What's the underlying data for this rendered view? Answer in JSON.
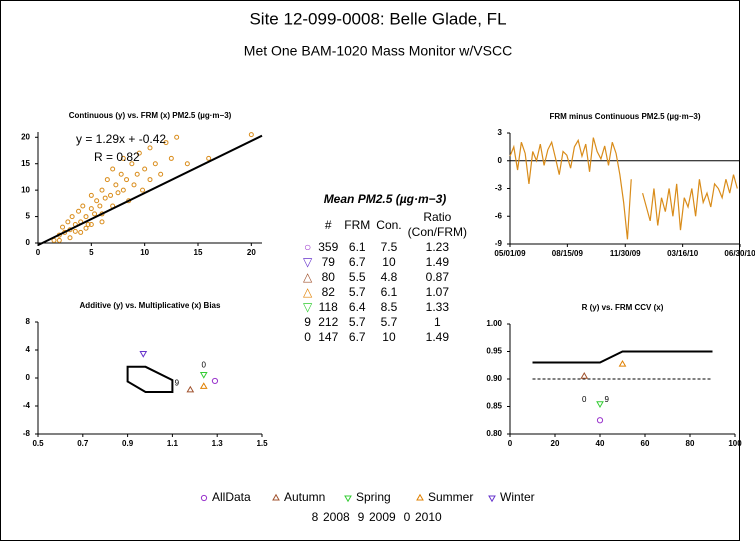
{
  "header": {
    "title": "Site 12-099-0008: Belle Glade, FL",
    "subtitle": "Met One BAM-1020 Mass Monitor w/VSCC"
  },
  "chart_data": [
    {
      "type": "scatter",
      "title": "Continuous (y) vs. FRM (x) PM2.5 (µg·m−3)",
      "color": "#d98c1a",
      "x": [
        1.5,
        2,
        2.3,
        2.5,
        2.8,
        3,
        3.2,
        3.5,
        3.8,
        4,
        4.2,
        4.5,
        4.7,
        5,
        5,
        5.3,
        5.5,
        5.8,
        6,
        6,
        6.3,
        6.5,
        6.8,
        7,
        7,
        7.3,
        7.5,
        7.8,
        8,
        8,
        8.3,
        8.5,
        8.8,
        9,
        9.3,
        9.5,
        9.8,
        10,
        10.5,
        10.5,
        11,
        11.5,
        12,
        12.5,
        13,
        14,
        16,
        20,
        3,
        4,
        5,
        6,
        2,
        3.5,
        4.5
      ],
      "y": [
        0.5,
        1.5,
        3,
        2,
        4,
        2.5,
        5,
        3.5,
        6,
        4,
        7,
        5,
        3.5,
        6.5,
        9,
        5.5,
        8,
        7,
        10,
        5.5,
        8.5,
        12,
        9,
        7,
        14,
        11,
        9.5,
        13,
        10,
        16,
        12,
        8,
        15,
        11,
        13,
        17,
        10,
        14,
        12,
        18,
        15,
        13,
        19,
        16,
        20,
        15,
        16,
        20.5,
        1,
        2,
        3.5,
        4,
        0.5,
        2.2,
        2.8
      ],
      "fit": {
        "x": [
          0,
          21
        ],
        "y": [
          -0.4,
          20.3
        ]
      },
      "annotations": [
        "y = 1.29x + -0.42",
        "R = 0.82"
      ],
      "xlim": [
        0,
        21
      ],
      "xticks": [
        0,
        5,
        10,
        15,
        20
      ],
      "ylim": [
        0,
        21
      ],
      "yticks": [
        0,
        5,
        10,
        15,
        20
      ]
    },
    {
      "type": "line",
      "title": "FRM minus Continuous PM2.5 (µg·m−3)",
      "color": "#d98c1a",
      "x": [
        "2009-05-01",
        "2009-05-08",
        "2009-05-15",
        "2009-05-22",
        "2009-05-29",
        "2009-06-05",
        "2009-06-12",
        "2009-06-19",
        "2009-06-26",
        "2009-07-03",
        "2009-07-10",
        "2009-07-17",
        "2009-07-24",
        "2009-07-31",
        "2009-08-07",
        "2009-08-14",
        "2009-08-21",
        "2009-08-28",
        "2009-09-04",
        "2009-09-11",
        "2009-09-18",
        "2009-09-25",
        "2009-10-02",
        "2009-10-09",
        "2009-10-16",
        "2009-10-23",
        "2009-10-30",
        "2009-11-06",
        "2009-11-13",
        "2009-11-20",
        "2009-11-27",
        "2009-12-04",
        "2009-12-11",
        "2009-12-18",
        "2009-12-25",
        "2010-01-01",
        "2010-01-08",
        "2010-01-15",
        "2010-01-22",
        "2010-01-29",
        "2010-02-05",
        "2010-02-12",
        "2010-02-19",
        "2010-02-26",
        "2010-03-05",
        "2010-03-12",
        "2010-03-19",
        "2010-03-26",
        "2010-04-02",
        "2010-04-09",
        "2010-04-16",
        "2010-04-23",
        "2010-04-30",
        "2010-05-07",
        "2010-05-14",
        "2010-05-21",
        "2010-05-28",
        "2010-06-04",
        "2010-06-11",
        "2010-06-18",
        "2010-06-25"
      ],
      "values": [
        0.5,
        1.5,
        -1,
        2,
        0.8,
        -2.5,
        1,
        0,
        1.8,
        -0.5,
        1.2,
        2,
        0.3,
        -1.5,
        1,
        0.6,
        -0.8,
        1.5,
        2.2,
        0.5,
        1.8,
        -1.2,
        2.5,
        1,
        0.2,
        1.6,
        -0.5,
        2,
        0.8,
        -1.5,
        -4.5,
        -8.5,
        -2,
        null,
        null,
        -3.5,
        -5,
        -6.5,
        -3,
        -7,
        -4,
        -5.5,
        -3,
        -6,
        -2.5,
        -7.5,
        -4,
        -5,
        -3,
        -6,
        -2,
        -4.5,
        -3.5,
        -5,
        -2.5,
        -3,
        -4,
        -2,
        -3.5,
        -1.5,
        -3
      ],
      "hline": 0,
      "xlim": [
        "2009-05-01",
        "2010-06-30"
      ],
      "xticks": [
        {
          "value": "2009-05-01",
          "label": "05/01/09"
        },
        {
          "value": "2009-08-15",
          "label": "08/15/09"
        },
        {
          "value": "2009-11-30",
          "label": "11/30/09"
        },
        {
          "value": "2010-03-16",
          "label": "03/16/10"
        },
        {
          "value": "2010-06-30",
          "label": "06/30/10"
        }
      ],
      "ylim": [
        -9,
        3
      ],
      "yticks": [
        -9,
        -6,
        -3,
        0,
        3
      ]
    },
    {
      "type": "scatter",
      "title": "Additive (y) vs. Multiplicative (x) Bias",
      "series": [
        {
          "name": "AllData",
          "color": "#9933cc",
          "marker": "circle",
          "x": [
            1.29
          ],
          "y": [
            -0.42
          ]
        },
        {
          "name": "Autumn",
          "color": "#a0522d",
          "marker": "triangle",
          "x": [
            1.18
          ],
          "y": [
            -1.7
          ]
        },
        {
          "name": "Spring",
          "color": "#33cc33",
          "marker": "triangle-down",
          "x": [
            1.24
          ],
          "y": [
            0.5
          ]
        },
        {
          "name": "Summer",
          "color": "#e08000",
          "marker": "triangle",
          "x": [
            1.24
          ],
          "y": [
            -1.2
          ]
        },
        {
          "name": "Winter",
          "color": "#6633cc",
          "marker": "triangle-down",
          "x": [
            0.97
          ],
          "y": [
            3.5
          ]
        },
        {
          "name": "2008",
          "color": "#000000",
          "symbol": "8",
          "x": [],
          "y": []
        },
        {
          "name": "2009",
          "color": "#000000",
          "symbol": "9",
          "x": [
            1.12
          ],
          "y": [
            -0.8
          ]
        },
        {
          "name": "2010",
          "color": "#000000",
          "symbol": "0",
          "x": [
            1.24
          ],
          "y": [
            1.8
          ]
        }
      ],
      "region": {
        "x": [
          0.9,
          0.98,
          1.1,
          1.1,
          0.98,
          0.9
        ],
        "y": [
          1.6,
          1.6,
          -0.3,
          -2,
          -2,
          -0.5
        ]
      },
      "xlim": [
        0.5,
        1.5
      ],
      "xticks": [
        0.5,
        0.7,
        0.9,
        1.1,
        1.3,
        1.5
      ],
      "ylim": [
        -8,
        8
      ],
      "yticks": [
        -8,
        -4,
        0,
        4,
        8
      ]
    },
    {
      "type": "scatter",
      "title": "R (y) vs. FRM CCV (x)",
      "series": [
        {
          "color": "#9933cc",
          "marker": "circle",
          "x": [
            40
          ],
          "y": [
            0.825
          ]
        },
        {
          "color": "#a0522d",
          "marker": "triangle",
          "x": [
            33
          ],
          "y": [
            0.905
          ]
        },
        {
          "color": "#33cc33",
          "marker": "triangle-down",
          "x": [
            40
          ],
          "y": [
            0.855
          ]
        },
        {
          "color": "#e08000",
          "marker": "triangle",
          "x": [
            50
          ],
          "y": [
            0.927
          ]
        },
        {
          "color": "#000000",
          "symbol": "9",
          "x": [
            43
          ],
          "y": [
            0.862
          ]
        },
        {
          "color": "#000000",
          "symbol": "0",
          "x": [
            33
          ],
          "y": [
            0.862
          ]
        }
      ],
      "lines": [
        {
          "x": [
            10,
            40,
            50,
            90
          ],
          "y": [
            0.93,
            0.93,
            0.95,
            0.95
          ],
          "dash": false
        },
        {
          "x": [
            10,
            90
          ],
          "y": [
            0.9,
            0.9
          ],
          "dash": true
        }
      ],
      "xlim": [
        0,
        100
      ],
      "xticks": [
        0,
        20,
        40,
        60,
        80,
        100
      ],
      "ylim": [
        0.8,
        1.0
      ],
      "yticks": [
        {
          "value": 0.8,
          "label": "0.80"
        },
        {
          "value": 0.85,
          "label": "0.85"
        },
        {
          "value": 0.9,
          "label": "0.90"
        },
        {
          "value": 0.95,
          "label": "0.95"
        },
        {
          "value": 1.0,
          "label": "1.00"
        }
      ]
    }
  ],
  "table": {
    "title": "Mean PM2.5 (µg·m−3)",
    "columns": [
      "#",
      "FRM",
      "Con.",
      "Ratio (Con/FRM)"
    ],
    "rows": [
      [
        "○",
        359,
        6.1,
        7.5,
        1.23
      ],
      [
        "▽",
        79,
        6.7,
        10,
        1.49
      ],
      [
        "△",
        80,
        5.5,
        4.8,
        0.87
      ],
      [
        "△",
        82,
        5.7,
        6.1,
        1.07
      ],
      [
        "▽",
        118,
        6.4,
        8.5,
        1.33
      ],
      [
        "9",
        212,
        5.7,
        5.7,
        1
      ],
      [
        "0",
        147,
        6.7,
        10,
        1.49
      ]
    ],
    "row_colors": [
      "#9933cc",
      "#6633cc",
      "#a0522d",
      "#e08000",
      "#33cc33",
      "#000000",
      "#000000"
    ]
  }
}
